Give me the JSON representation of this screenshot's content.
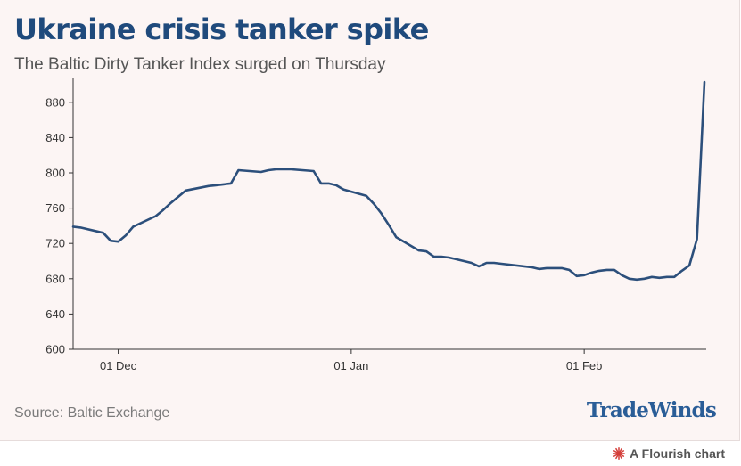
{
  "header": {
    "title": "Ukraine crisis tanker spike",
    "subtitle": "The Baltic Dirty Tanker Index surged on Thursday"
  },
  "footer": {
    "source": "Source: Baltic Exchange",
    "brand": "TradeWinds",
    "flourish_label": "A Flourish chart",
    "flourish_icon": "flourish-logo-icon"
  },
  "colors": {
    "line": "#2c4f7b",
    "title": "#1f4a7c",
    "brand": "#2a5d97",
    "background": "#fcf5f4",
    "gridline": "#dcdcdc",
    "flourish_icon": "#d43f3a"
  },
  "chart_data": {
    "type": "line",
    "title": "Ukraine crisis tanker spike",
    "subtitle": "The Baltic Dirty Tanker Index surged on Thursday",
    "xlabel": "",
    "ylabel": "",
    "xlim": [
      "2021-11-25",
      "2022-02-17"
    ],
    "ylim": [
      600,
      900
    ],
    "y_ticks": [
      600,
      640,
      680,
      720,
      760,
      800,
      840,
      880
    ],
    "x_ticks": [
      {
        "date": "2021-12-01",
        "label": "01 Dec"
      },
      {
        "date": "2022-01-01",
        "label": "01 Jan"
      },
      {
        "date": "2022-02-01",
        "label": "01 Feb"
      }
    ],
    "grid": false,
    "legend": "none",
    "series": [
      {
        "points": [
          [
            "2021-11-25",
            739
          ],
          [
            "2021-11-26",
            738
          ],
          [
            "2021-11-29",
            732
          ],
          [
            "2021-11-30",
            723
          ],
          [
            "2021-12-01",
            722
          ],
          [
            "2021-12-02",
            729
          ],
          [
            "2021-12-03",
            739
          ],
          [
            "2021-12-06",
            751
          ],
          [
            "2021-12-07",
            758
          ],
          [
            "2021-12-08",
            766
          ],
          [
            "2021-12-09",
            773
          ],
          [
            "2021-12-10",
            780
          ],
          [
            "2021-12-13",
            785
          ],
          [
            "2021-12-14",
            786
          ],
          [
            "2021-12-15",
            787
          ],
          [
            "2021-12-16",
            788
          ],
          [
            "2021-12-17",
            803
          ],
          [
            "2021-12-20",
            801
          ],
          [
            "2021-12-21",
            803
          ],
          [
            "2021-12-22",
            804
          ],
          [
            "2021-12-23",
            804
          ],
          [
            "2021-12-24",
            804
          ],
          [
            "2021-12-27",
            802
          ],
          [
            "2021-12-28",
            788
          ],
          [
            "2021-12-29",
            788
          ],
          [
            "2021-12-30",
            786
          ],
          [
            "2021-12-31",
            781
          ],
          [
            "2022-01-03",
            774
          ],
          [
            "2022-01-04",
            765
          ],
          [
            "2022-01-05",
            754
          ],
          [
            "2022-01-06",
            741
          ],
          [
            "2022-01-07",
            727
          ],
          [
            "2022-01-10",
            712
          ],
          [
            "2022-01-11",
            711
          ],
          [
            "2022-01-12",
            705
          ],
          [
            "2022-01-13",
            705
          ],
          [
            "2022-01-14",
            704
          ],
          [
            "2022-01-17",
            698
          ],
          [
            "2022-01-18",
            694
          ],
          [
            "2022-01-19",
            698
          ],
          [
            "2022-01-20",
            698
          ],
          [
            "2022-01-21",
            697
          ],
          [
            "2022-01-24",
            694
          ],
          [
            "2022-01-25",
            693
          ],
          [
            "2022-01-26",
            691
          ],
          [
            "2022-01-27",
            692
          ],
          [
            "2022-01-28",
            692
          ],
          [
            "2022-01-29",
            692
          ],
          [
            "2022-01-30",
            690
          ],
          [
            "2022-01-31",
            683
          ],
          [
            "2022-02-01",
            684
          ],
          [
            "2022-02-02",
            687
          ],
          [
            "2022-02-03",
            689
          ],
          [
            "2022-02-04",
            690
          ],
          [
            "2022-02-05",
            690
          ],
          [
            "2022-02-06",
            684
          ],
          [
            "2022-02-07",
            680
          ],
          [
            "2022-02-08",
            679
          ],
          [
            "2022-02-09",
            680
          ],
          [
            "2022-02-10",
            682
          ],
          [
            "2022-02-11",
            681
          ],
          [
            "2022-02-12",
            682
          ],
          [
            "2022-02-13",
            682
          ],
          [
            "2022-02-14",
            689
          ],
          [
            "2022-02-15",
            695
          ],
          [
            "2022-02-16",
            725
          ],
          [
            "2022-02-17",
            903
          ]
        ]
      }
    ]
  }
}
